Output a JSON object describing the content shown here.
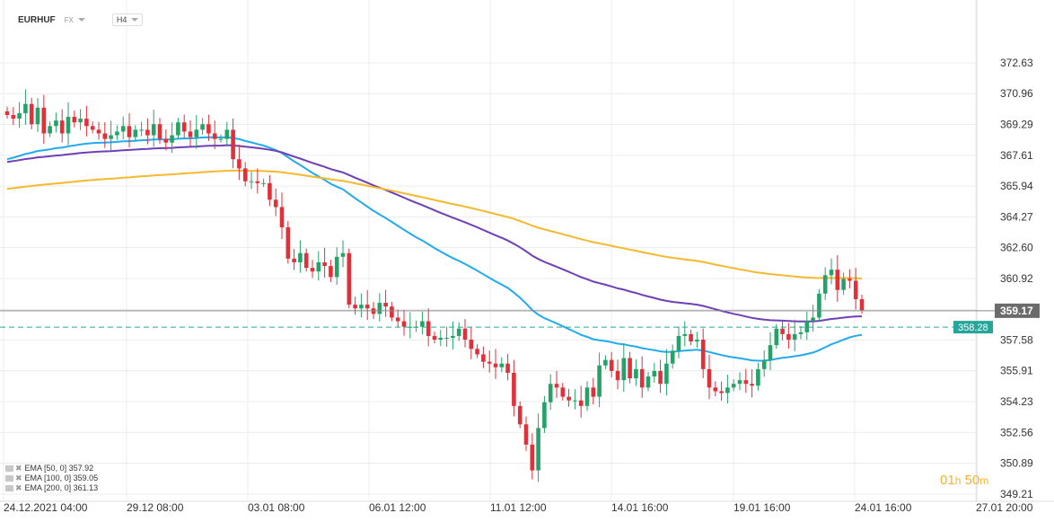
{
  "header": {
    "symbol": "EURHUF",
    "market": "FX",
    "timeframe": "H4"
  },
  "countdown": {
    "hours": "01",
    "hours_unit": "h",
    "minutes": "50",
    "minutes_unit": "m"
  },
  "legend": [
    {
      "label": "EMA [50, 0] 357.92"
    },
    {
      "label": "EMA [100, 0] 359.05"
    },
    {
      "label": "EMA [200, 0] 361.13"
    }
  ],
  "colors": {
    "up": "#26a269",
    "down": "#e0303a",
    "ema50": "#22aaee",
    "ema100": "#6f3fb5",
    "ema200": "#f5b92f",
    "price_line": "#888888",
    "price_label_bg": "#6b6b6b",
    "bid_line": "#26a69a",
    "bid_label_bg": "#26a69a",
    "grid": "#ececec"
  },
  "chart_data": {
    "type": "candlestick",
    "ylim": [
      349.21,
      373.46
    ],
    "y_ticks": [
      "372.63",
      "370.96",
      "369.29",
      "367.61",
      "365.94",
      "364.27",
      "362.60",
      "360.92",
      "359.25",
      "357.58",
      "355.91",
      "354.23",
      "352.56",
      "350.89",
      "349.21"
    ],
    "x_ticks": [
      "24.12.2021 04:00",
      "29.12 08:00",
      "03.01 08:00",
      "06.01 12:00",
      "11.01 12:00",
      "14.01 16:00",
      "19.01 16:00",
      "24.01 16:00",
      "27.01 20:00"
    ],
    "last_price": "359.17",
    "bid_price": "358.28",
    "close": [
      369.8,
      369.6,
      369.9,
      370.4,
      369.3,
      370.2,
      368.8,
      369.2,
      369.5,
      368.8,
      369.7,
      369.4,
      369.6,
      369.2,
      369.0,
      368.8,
      368.5,
      368.7,
      368.9,
      369.2,
      368.6,
      369.0,
      369.0,
      368.7,
      369.3,
      368.5,
      368.3,
      368.7,
      369.4,
      368.9,
      368.6,
      369.0,
      369.3,
      368.8,
      368.5,
      368.5,
      369.0,
      367.4,
      366.9,
      366.2,
      366.2,
      366.1,
      366.1,
      365.2,
      364.8,
      363.7,
      362.0,
      361.8,
      362.3,
      361.5,
      361.3,
      361.8,
      361.6,
      361.0,
      362.1,
      362.3,
      359.5,
      359.3,
      359.5,
      359.3,
      359.0,
      359.6,
      359.4,
      358.8,
      358.6,
      358.3,
      358.3,
      358.3,
      358.6,
      357.8,
      357.6,
      357.7,
      357.7,
      357.8,
      358.2,
      357.6,
      357.1,
      356.8,
      356.4,
      356.3,
      356.1,
      356.3,
      355.8,
      354.0,
      353.0,
      351.9,
      350.5,
      352.8,
      354.2,
      355.2,
      355.0,
      354.5,
      354.3,
      354.3,
      354.0,
      355.0,
      354.5,
      356.2,
      356.5,
      355.9,
      355.4,
      356.6,
      355.5,
      356.0,
      355.0,
      355.6,
      355.9,
      355.2,
      356.3,
      357.0,
      357.8,
      357.9,
      357.5,
      357.6,
      356.0,
      355.0,
      354.8,
      354.7,
      355.0,
      355.2,
      355.4,
      355.2,
      355.1,
      356.0,
      356.5,
      357.3,
      358.2,
      357.9,
      357.6,
      357.9,
      358.0,
      358.6,
      358.8,
      360.1,
      361.1,
      361.4,
      360.3,
      360.9,
      360.8,
      359.8,
      359.2
    ]
  }
}
